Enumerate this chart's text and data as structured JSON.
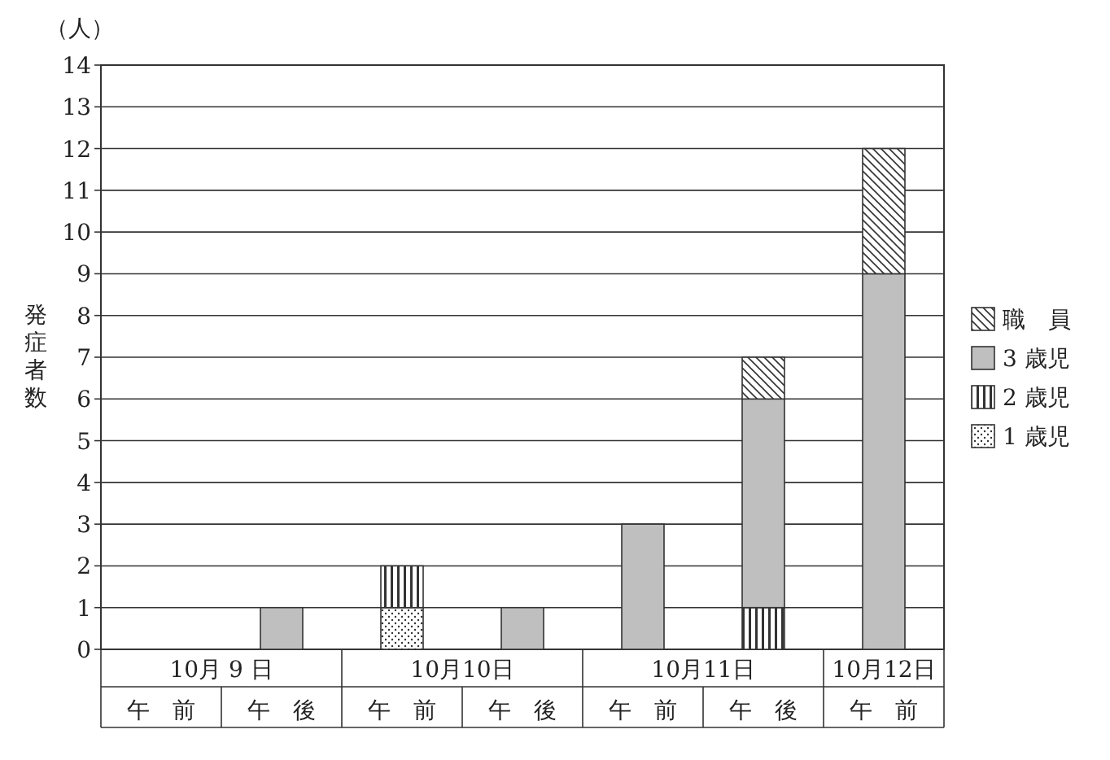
{
  "chart_data": {
    "type": "bar",
    "stacked": true,
    "ylabel": "発症者数",
    "categories": [
      "午　前",
      "午　後",
      "午　前",
      "午　後",
      "午　前",
      "午　後",
      "午　前"
    ],
    "annotations": [
      "（人）",
      "10月 9 日",
      "10月10日",
      "10月11日",
      "10月12日"
    ],
    "series": [
      {
        "name": "1 歳児",
        "color": "#333333",
        "values": [
          0,
          0,
          1,
          0,
          0,
          0,
          0
        ]
      },
      {
        "name": "2 歳児",
        "color": "#333333",
        "values": [
          0,
          0,
          1,
          0,
          0,
          1,
          0
        ]
      },
      {
        "name": "3 歳児",
        "color": "#bfbfbf",
        "values": [
          0,
          1,
          0,
          1,
          3,
          5,
          9
        ]
      },
      {
        "name": "職　員",
        "color": "#333333",
        "values": [
          0,
          0,
          0,
          0,
          0,
          1,
          3
        ]
      }
    ],
    "ylim": [
      0,
      14
    ],
    "yticks": [
      0,
      1,
      2,
      3,
      4,
      5,
      6,
      7,
      8,
      9,
      10,
      11,
      12,
      13,
      14
    ],
    "grid": "y",
    "legend": "right"
  }
}
